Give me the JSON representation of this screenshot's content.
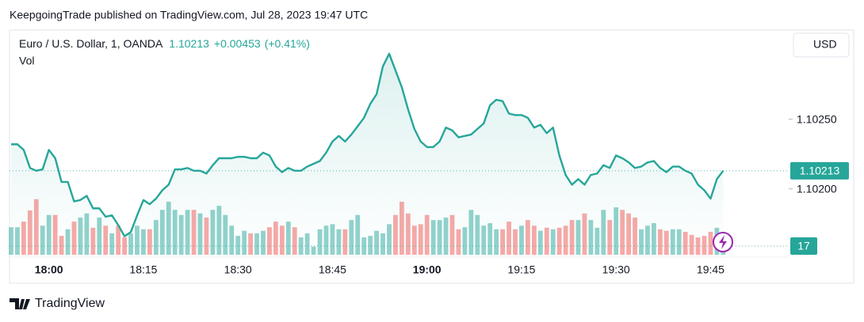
{
  "header": {
    "publisher_line": "KeepgoingTrade published on TradingView.com, Jul 28, 2023 19:47 UTC"
  },
  "chart_data": {
    "type": "line",
    "title": "Euro / U.S. Dollar, 1, OANDA",
    "change": "+0.00453",
    "change_pct": "(+0.41%)",
    "currency": "USD",
    "color": "#26a69a",
    "down_color": "#ef5350",
    "categories": [
      null,
      null,
      null,
      null,
      null,
      null,
      "18:00",
      null,
      null,
      null,
      null,
      null,
      null,
      null,
      null,
      null,
      null,
      null,
      null,
      null,
      null,
      "18:15",
      null,
      null,
      null,
      null,
      null,
      null,
      null,
      null,
      null,
      null,
      null,
      null,
      null,
      null,
      "18:30",
      null,
      null,
      null,
      null,
      null,
      null,
      null,
      null,
      null,
      null,
      null,
      null,
      null,
      null,
      "18:45",
      null,
      null,
      null,
      null,
      null,
      null,
      null,
      null,
      null,
      null,
      null,
      null,
      null,
      null,
      "19:00",
      null,
      null,
      null,
      null,
      null,
      null,
      null,
      null,
      null,
      null,
      null,
      null,
      null,
      null,
      "19:15",
      null,
      null,
      null,
      null,
      null,
      null,
      null,
      null,
      null,
      null,
      null,
      null,
      null,
      null,
      "19:30",
      null,
      null,
      null,
      null,
      null,
      null,
      null,
      null,
      null,
      null,
      null,
      null,
      null,
      null,
      "19:45",
      null,
      null
    ],
    "values": [
      1.10232,
      1.10232,
      1.10228,
      1.10215,
      1.10213,
      1.10214,
      1.10228,
      1.10222,
      1.10205,
      1.10205,
      1.10191,
      1.10192,
      1.10195,
      1.10186,
      1.10186,
      1.1018,
      1.10181,
      1.10174,
      1.10166,
      1.10169,
      1.10181,
      1.10192,
      1.10189,
      1.10193,
      1.10199,
      1.10203,
      1.10214,
      1.10214,
      1.10215,
      1.10213,
      1.10213,
      1.10211,
      1.10217,
      1.10222,
      1.10222,
      1.10222,
      1.10223,
      1.10223,
      1.10222,
      1.10222,
      1.10226,
      1.10224,
      1.10216,
      1.10212,
      1.10215,
      1.10213,
      1.10213,
      1.10216,
      1.10218,
      1.1022,
      1.10226,
      1.10234,
      1.10238,
      1.10234,
      1.10239,
      1.10245,
      1.10251,
      1.10261,
      1.10268,
      1.10288,
      1.10297,
      1.10285,
      1.10273,
      1.10257,
      1.10243,
      1.10234,
      1.1023,
      1.1023,
      1.10234,
      1.10244,
      1.10242,
      1.10237,
      1.10238,
      1.10239,
      1.10243,
      1.10247,
      1.1026,
      1.10264,
      1.10263,
      1.10254,
      1.10253,
      1.10253,
      1.10251,
      1.10244,
      1.10246,
      1.1024,
      1.10244,
      1.10224,
      1.1021,
      1.10203,
      1.10207,
      1.10203,
      1.1021,
      1.10211,
      1.10217,
      1.10215,
      1.10224,
      1.10222,
      1.10219,
      1.10215,
      1.10216,
      1.10219,
      1.1022,
      1.10215,
      1.10212,
      1.10216,
      1.10216,
      1.10213,
      1.10211,
      1.10203,
      1.10199,
      1.10193,
      1.10207,
      1.10213
    ],
    "ylim": [
      1.10151,
      1.10314
    ],
    "yticks": [
      {
        "value": 1.1025,
        "label": "1.10250"
      },
      {
        "value": 1.102,
        "label": "1.10200"
      }
    ],
    "volume": {
      "label": "Vol",
      "ylim": [
        0,
        180
      ],
      "values": [
        54,
        54,
        65,
        87,
        109,
        57,
        78,
        78,
        37,
        50,
        65,
        73,
        81,
        53,
        73,
        57,
        42,
        57,
        34,
        42,
        57,
        50,
        50,
        68,
        88,
        104,
        88,
        78,
        88,
        88,
        81,
        73,
        88,
        96,
        78,
        57,
        37,
        47,
        42,
        42,
        47,
        54,
        65,
        57,
        65,
        54,
        34,
        42,
        16,
        50,
        57,
        60,
        50,
        50,
        68,
        78,
        34,
        37,
        47,
        42,
        60,
        78,
        104,
        81,
        57,
        60,
        78,
        68,
        68,
        73,
        78,
        50,
        54,
        88,
        78,
        57,
        62,
        50,
        50,
        65,
        50,
        57,
        68,
        57,
        47,
        53,
        50,
        53,
        57,
        68,
        68,
        81,
        68,
        53,
        88,
        68,
        93,
        88,
        81,
        73,
        50,
        57,
        62,
        50,
        47,
        50,
        50,
        45,
        39,
        34,
        37,
        45,
        53,
        17
      ]
    }
  },
  "footer": {
    "brand": "TradingView"
  }
}
